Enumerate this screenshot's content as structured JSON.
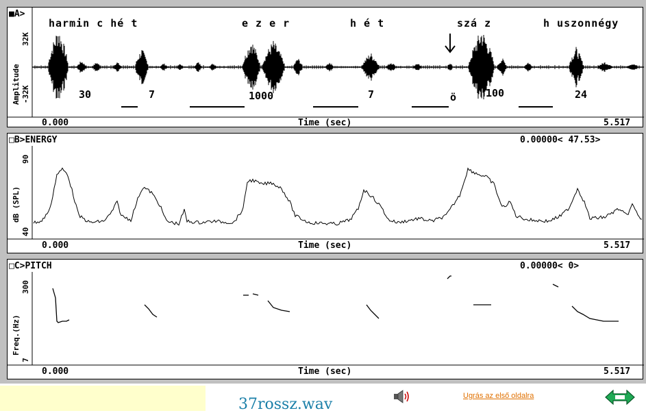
{
  "panel_a": {
    "title": "■A>",
    "ylabel": "Amplitude",
    "ytop": "32K",
    "ybottom": "-32K",
    "xstart": "0.000",
    "xlabel": "Time (sec)",
    "xend": "5.517",
    "words": [
      "harmin c  hé t",
      "e z e r",
      "h é t",
      "szá z",
      "h uszonnégy"
    ],
    "numbers": [
      "30",
      "7",
      "1000",
      "7",
      "ö",
      "100",
      "24"
    ],
    "marker_icon": "down-arrow-icon"
  },
  "panel_b": {
    "title": "□B>ENERGY",
    "readout": "0.00000< 47.53>",
    "ylabel": "dB (SPL)",
    "ytop": "90",
    "ybottom": "40",
    "xstart": "0.000",
    "xlabel": "Time (sec)",
    "xend": "5.517"
  },
  "panel_c": {
    "title": "□C>PITCH",
    "readout": "0.00000<       0>",
    "ylabel": "Freq.(Hz)",
    "ytop": "300",
    "ybottom": "7",
    "xstart": "0.000",
    "xlabel": "Time (sec)",
    "xend": "5.517"
  },
  "footer": {
    "caption": "37rossz.wav",
    "link": "Ugrás az első oldalra",
    "speaker_icon": "speaker-icon",
    "nav_icon": "left-right-arrows-icon"
  },
  "colors": {
    "frame": "#c0c0c0",
    "link": "#e07000",
    "caption": "#1a7fa8",
    "yellow": "#ffffcc"
  }
}
